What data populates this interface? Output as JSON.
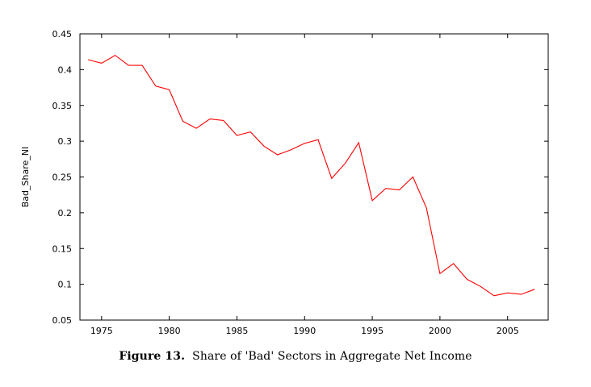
{
  "figure": {
    "label": "Figure 13.",
    "caption": "Share of 'Bad' Sectors in Aggregate Net Income"
  },
  "chart_data": {
    "type": "line",
    "title": "",
    "xlabel": "",
    "ylabel": "Bad_Share_NI",
    "xlim": [
      1973.4,
      2008.0
    ],
    "ylim": [
      0.05,
      0.45
    ],
    "xticks": [
      1975,
      1980,
      1985,
      1990,
      1995,
      2000,
      2005
    ],
    "yticks": [
      0.05,
      0.1,
      0.15,
      0.2,
      0.25,
      0.3,
      0.35,
      0.4,
      0.45
    ],
    "ytick_labels": [
      "0.05",
      "0.1",
      "0.15",
      "0.2",
      "0.25",
      "0.3",
      "0.35",
      "0.4",
      "0.45"
    ],
    "xtick_labels": [
      "1975",
      "1980",
      "1985",
      "1990",
      "1995",
      "2000",
      "2005"
    ],
    "grid": false,
    "series": [
      {
        "color": "#ff0000",
        "x": [
          1974,
          1975,
          1976,
          1977,
          1978,
          1979,
          1980,
          1981,
          1982,
          1983,
          1984,
          1985,
          1986,
          1987,
          1988,
          1989,
          1990,
          1991,
          1992,
          1993,
          1994,
          1995,
          1996,
          1997,
          1998,
          1999,
          2000,
          2001,
          2002,
          2003,
          2004,
          2005,
          2006,
          2007
        ],
        "y": [
          0.414,
          0.409,
          0.42,
          0.406,
          0.406,
          0.377,
          0.372,
          0.328,
          0.318,
          0.331,
          0.329,
          0.308,
          0.313,
          0.293,
          0.281,
          0.288,
          0.297,
          0.302,
          0.248,
          0.269,
          0.298,
          0.217,
          0.234,
          0.232,
          0.25,
          0.207,
          0.115,
          0.129,
          0.107,
          0.097,
          0.084,
          0.088,
          0.086,
          0.093
        ]
      }
    ]
  }
}
